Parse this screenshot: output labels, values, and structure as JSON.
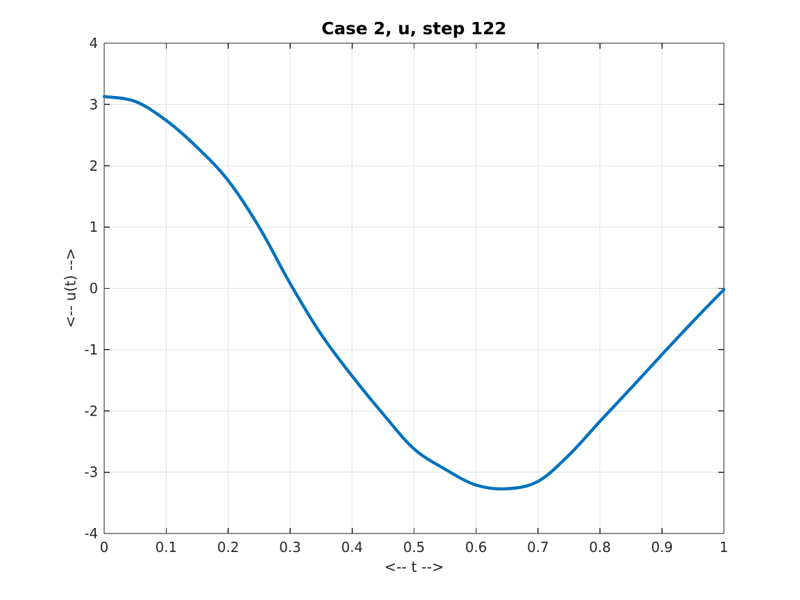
{
  "figure": {
    "background": "#ffffff"
  },
  "chart_data": {
    "type": "line",
    "title": "Case 2, u, step 122",
    "xlabel": "<-- t -->",
    "ylabel": "<-- u(t) -->",
    "xlim": [
      0,
      1
    ],
    "ylim": [
      -4,
      4
    ],
    "xticks": [
      0,
      0.1,
      0.2,
      0.3,
      0.4,
      0.5,
      0.6,
      0.7,
      0.8,
      0.9,
      1
    ],
    "xtick_labels": [
      "0",
      "0.1",
      "0.2",
      "0.3",
      "0.4",
      "0.5",
      "0.6",
      "0.7",
      "0.8",
      "0.9",
      "1"
    ],
    "yticks": [
      -4,
      -3,
      -2,
      -1,
      0,
      1,
      2,
      3,
      4
    ],
    "ytick_labels": [
      "-4",
      "-3",
      "-2",
      "-1",
      "0",
      "1",
      "2",
      "3",
      "4"
    ],
    "grid": true,
    "legend": "none",
    "colors": {
      "line": "#0072BD",
      "grid": "#e0e0e0",
      "axis": "#1a1a1a",
      "text": "#262626"
    },
    "line_width": 4.5,
    "series": [
      {
        "name": "u",
        "x": [
          0,
          0.05,
          0.1,
          0.15,
          0.2,
          0.25,
          0.3,
          0.35,
          0.4,
          0.45,
          0.5,
          0.55,
          0.6,
          0.65,
          0.7,
          0.75,
          0.8,
          0.85,
          0.9,
          0.95,
          1
        ],
        "y": [
          3.13,
          3.05,
          2.74,
          2.3,
          1.76,
          1.0,
          0.08,
          -0.75,
          -1.43,
          -2.05,
          -2.62,
          -2.95,
          -3.21,
          -3.27,
          -3.15,
          -2.72,
          -2.17,
          -1.63,
          -1.08,
          -0.54,
          -0.02
        ]
      }
    ]
  }
}
